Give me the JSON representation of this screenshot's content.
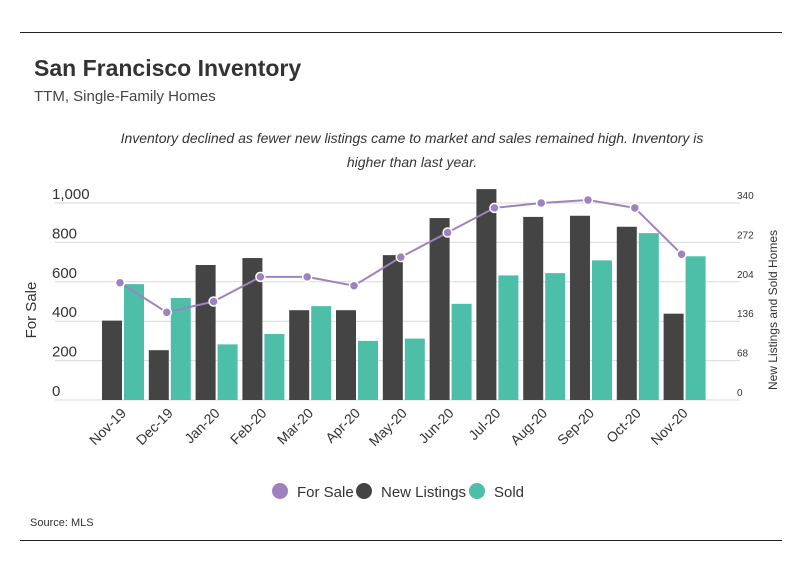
{
  "header": {
    "title": "San Francisco Inventory",
    "subtitle": "TTM, Single-Family Homes"
  },
  "annotation": "Inventory declined as fewer new listings came to market and sales remained high. Inventory is higher than last year.",
  "footer": {
    "source": "Source:  MLS"
  },
  "colors": {
    "for_sale": "#9e82bf",
    "new_listings": "#444444",
    "sold": "#4dbfa8",
    "grid": "#d9d9d9"
  },
  "chart_data": {
    "type": "bar",
    "categories": [
      "Nov-19",
      "Dec-19",
      "Jan-20",
      "Feb-20",
      "Mar-20",
      "Apr-20",
      "May-20",
      "Jun-20",
      "Jul-20",
      "Aug-20",
      "Sep-20",
      "Oct-20",
      "Nov-20"
    ],
    "series": [
      {
        "name": "For Sale",
        "type": "line",
        "axis": "left",
        "values": [
          595,
          445,
          500,
          625,
          625,
          580,
          725,
          850,
          975,
          1000,
          1015,
          975,
          740
        ]
      },
      {
        "name": "New Listings",
        "type": "bar",
        "axis": "right",
        "values": [
          137,
          86,
          233,
          245,
          155,
          155,
          250,
          314,
          364,
          316,
          318,
          299,
          149
        ]
      },
      {
        "name": "Sold",
        "type": "bar",
        "axis": "right",
        "values": [
          200,
          176,
          96,
          114,
          162,
          102,
          106,
          166,
          215,
          219,
          241,
          288,
          248
        ]
      }
    ],
    "ylabel": "For Sale",
    "y2label": "New Listings and Sold Homes",
    "ylim": [
      0,
      1000
    ],
    "yticks": [
      "0",
      "200",
      "400",
      "600",
      "800",
      "1,000"
    ],
    "y2lim": [
      0,
      340
    ],
    "y2ticks": [
      "0",
      "68",
      "136",
      "204",
      "272",
      "340"
    ],
    "grid": true,
    "legend": "bottom-center"
  }
}
